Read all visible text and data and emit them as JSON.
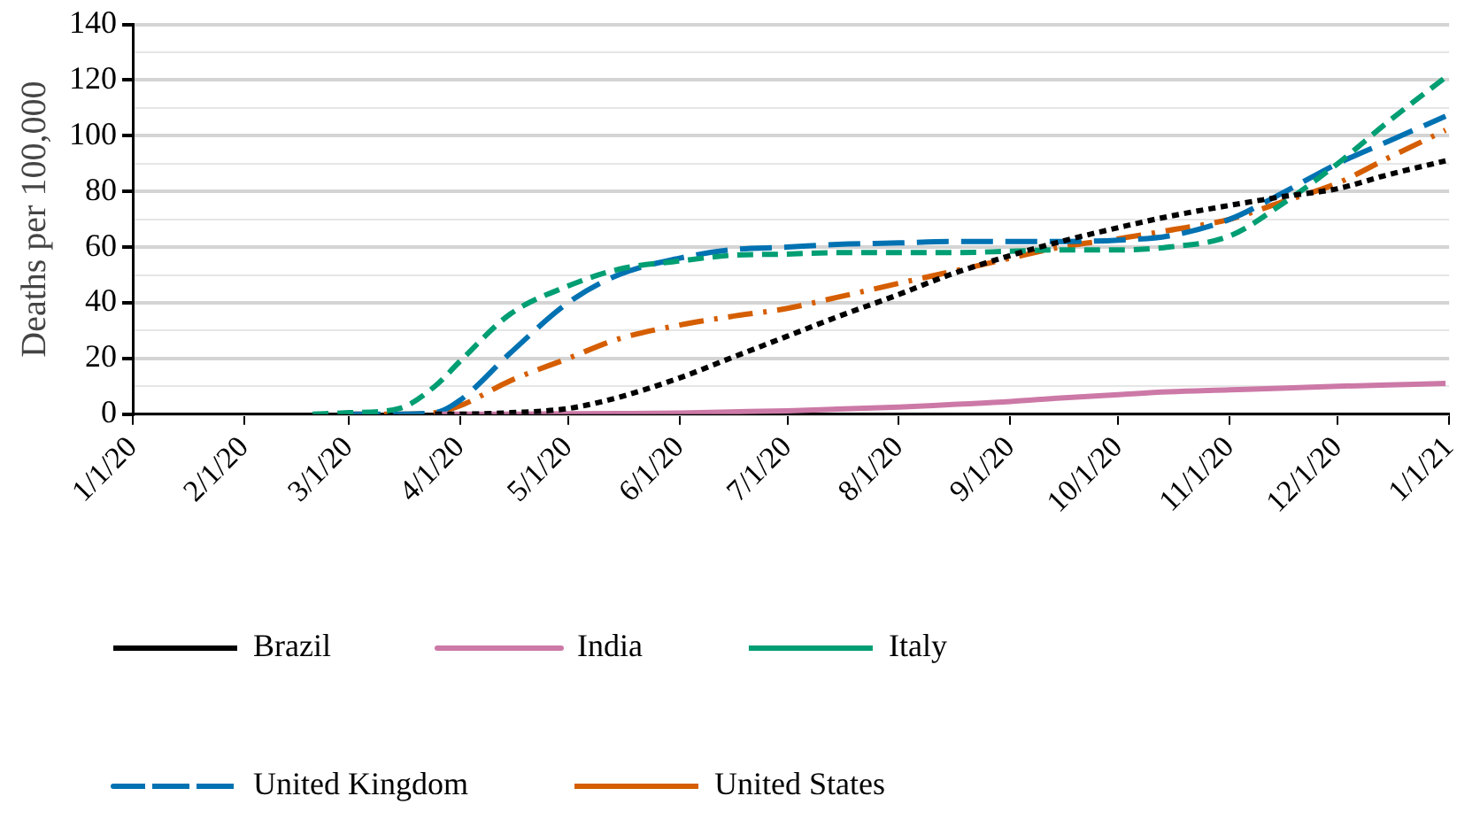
{
  "chart_data": {
    "type": "line",
    "ylabel": "Deaths per 100,000",
    "x": [
      "2020-02-20",
      "2020-03-01",
      "2020-03-15",
      "2020-03-25",
      "2020-04-01",
      "2020-04-15",
      "2020-05-01",
      "2020-05-15",
      "2020-06-01",
      "2020-06-15",
      "2020-07-01",
      "2020-07-15",
      "2020-08-01",
      "2020-08-15",
      "2020-09-01",
      "2020-09-15",
      "2020-10-01",
      "2020-10-15",
      "2020-11-01",
      "2020-11-15",
      "2020-12-01",
      "2020-12-15",
      "2020-12-31"
    ],
    "series": [
      {
        "name": "Brazil",
        "color": "#000000",
        "line_style": "dotted",
        "values": [
          null,
          null,
          null,
          0,
          0,
          0.5,
          2,
          6,
          13,
          20,
          28,
          35,
          43,
          50,
          57,
          62,
          67,
          71,
          75,
          78,
          81,
          86,
          91
        ]
      },
      {
        "name": "India",
        "color": "#cc79a7",
        "line_style": "solid",
        "values": [
          null,
          null,
          null,
          0,
          0,
          0,
          0.1,
          0.2,
          0.4,
          0.8,
          1.2,
          1.8,
          2.5,
          3.4,
          4.5,
          5.8,
          7,
          8,
          8.7,
          9.3,
          10,
          10.5,
          11
        ]
      },
      {
        "name": "Italy",
        "color": "#009e73",
        "line_style": "dashed",
        "values": [
          0,
          0.5,
          2,
          10,
          19,
          36,
          46,
          52,
          55,
          57,
          57.5,
          58,
          58,
          58,
          58.5,
          59,
          59,
          60,
          64,
          75,
          90,
          105,
          121
        ]
      },
      {
        "name": "United Kingdom",
        "color": "#0072b2",
        "line_style": "longdash",
        "values": [
          null,
          0,
          0,
          0.5,
          5,
          22,
          40,
          50,
          56,
          59,
          60,
          61,
          61.5,
          62,
          62,
          62,
          62.5,
          64,
          70,
          79,
          90,
          98,
          107
        ]
      },
      {
        "name": "United States",
        "color": "#d55e00",
        "line_style": "dashdot",
        "values": [
          null,
          0,
          0,
          0.5,
          3,
          12,
          20,
          27,
          32,
          35,
          38,
          42,
          47,
          51,
          56,
          60,
          63,
          66,
          70,
          76,
          83,
          92,
          102
        ]
      }
    ],
    "xlim": [
      "2020-01-01",
      "2021-01-01"
    ],
    "xticks": [
      {
        "value": "2020-01-01",
        "label": "1/1/20"
      },
      {
        "value": "2020-02-01",
        "label": "2/1/20"
      },
      {
        "value": "2020-03-01",
        "label": "3/1/20"
      },
      {
        "value": "2020-04-01",
        "label": "4/1/20"
      },
      {
        "value": "2020-05-01",
        "label": "5/1/20"
      },
      {
        "value": "2020-06-01",
        "label": "6/1/20"
      },
      {
        "value": "2020-07-01",
        "label": "7/1/20"
      },
      {
        "value": "2020-08-01",
        "label": "8/1/20"
      },
      {
        "value": "2020-09-01",
        "label": "9/1/20"
      },
      {
        "value": "2020-10-01",
        "label": "10/1/20"
      },
      {
        "value": "2020-11-01",
        "label": "11/1/20"
      },
      {
        "value": "2020-12-01",
        "label": "12/1/20"
      },
      {
        "value": "2021-01-01",
        "label": "1/1/21"
      }
    ],
    "ylim": [
      0,
      140
    ],
    "yticks": [
      0,
      {
        "value": 10,
        "label": null
      },
      20,
      {
        "value": 30,
        "label": null
      },
      40,
      {
        "value": 50,
        "label": null
      },
      60,
      {
        "value": 70,
        "label": null
      },
      80,
      {
        "value": 90,
        "label": null
      },
      100,
      {
        "value": 110,
        "label": null
      },
      120,
      {
        "value": 130,
        "label": null
      },
      140
    ],
    "grid": "y",
    "legend": "bottom",
    "marker": "none"
  }
}
